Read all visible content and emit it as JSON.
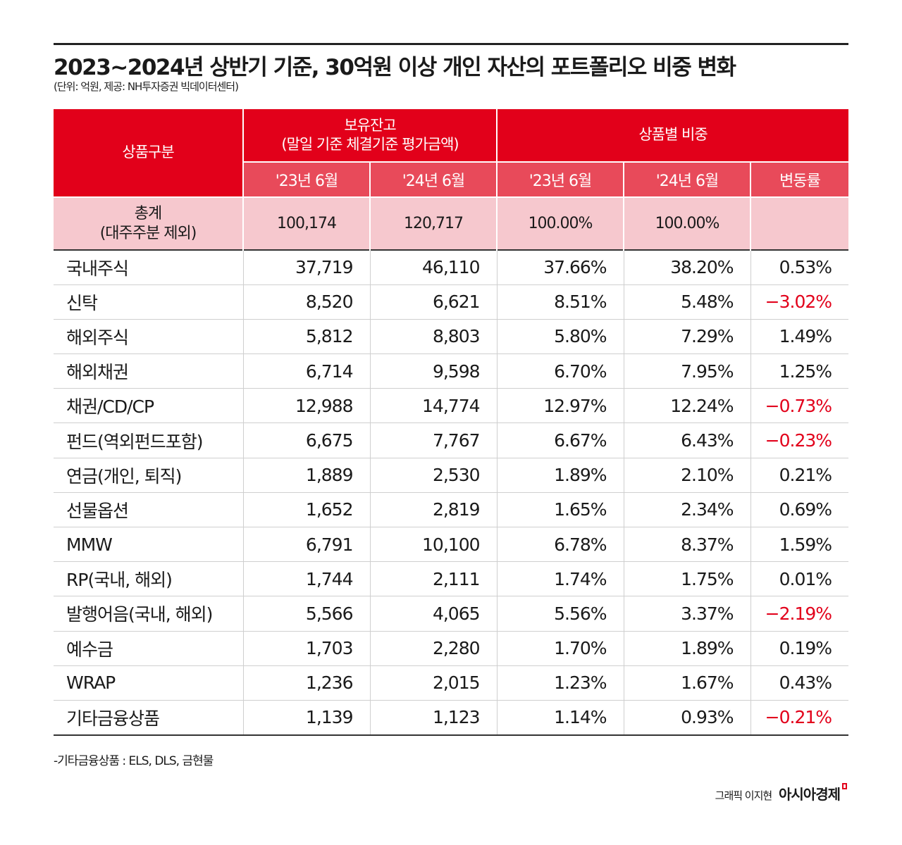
{
  "title": "2023~2024년 상반기 기준, 30억원 이상 개인 자산의 포트폴리오 비중 변화",
  "subtitle": "(단위: 억원, 제공: NH투자증권 빅데이터센터)",
  "chart_data": {
    "type": "table",
    "header": {
      "category": "상품구분",
      "holdings": "보유잔고",
      "holdings_sub": "(말일 기준 체결기준 평가금액)",
      "share": "상품별 비중"
    },
    "columns": [
      "'23년 6월",
      "'24년 6월",
      "'23년 6월",
      "'24년 6월",
      "변동률"
    ],
    "total": {
      "label1": "총계",
      "label2": "(대주주분 제외)",
      "values": [
        "100,174",
        "120,717",
        "100.00%",
        "100.00%",
        ""
      ]
    },
    "rows": [
      {
        "label": "국내주식",
        "values": [
          "37,719",
          "46,110",
          "37.66%",
          "38.20%",
          "0.53%"
        ]
      },
      {
        "label": "신탁",
        "values": [
          "8,520",
          "6,621",
          "8.51%",
          "5.48%",
          "-3.02%"
        ]
      },
      {
        "label": "해외주식",
        "values": [
          "5,812",
          "8,803",
          "5.80%",
          "7.29%",
          "1.49%"
        ]
      },
      {
        "label": "해외채권",
        "values": [
          "6,714",
          "9,598",
          "6.70%",
          "7.95%",
          "1.25%"
        ]
      },
      {
        "label": "채권/CD/CP",
        "values": [
          "12,988",
          "14,774",
          "12.97%",
          "12.24%",
          "-0.73%"
        ]
      },
      {
        "label": "펀드(역외펀드포함)",
        "values": [
          "6,675",
          "7,767",
          "6.67%",
          "6.43%",
          "-0.23%"
        ]
      },
      {
        "label": "연금(개인, 퇴직)",
        "values": [
          "1,889",
          "2,530",
          "1.89%",
          "2.10%",
          "0.21%"
        ]
      },
      {
        "label": "선물옵션",
        "values": [
          "1,652",
          "2,819",
          "1.65%",
          "2.34%",
          "0.69%"
        ]
      },
      {
        "label": "MMW",
        "values": [
          "6,791",
          "10,100",
          "6.78%",
          "8.37%",
          "1.59%"
        ]
      },
      {
        "label": "RP(국내, 해외)",
        "values": [
          "1,744",
          "2,111",
          "1.74%",
          "1.75%",
          "0.01%"
        ]
      },
      {
        "label": "발행어음(국내, 해외)",
        "values": [
          "5,566",
          "4,065",
          "5.56%",
          "3.37%",
          "-2.19%"
        ]
      },
      {
        "label": "예수금",
        "values": [
          "1,703",
          "2,280",
          "1.70%",
          "1.89%",
          "0.19%"
        ]
      },
      {
        "label": "WRAP",
        "values": [
          "1,236",
          "2,015",
          "1.23%",
          "1.67%",
          "0.43%"
        ]
      },
      {
        "label": "기타금융상품",
        "values": [
          "1,139",
          "1,123",
          "1.14%",
          "0.93%",
          "-0.21%"
        ]
      }
    ],
    "colors": {
      "header": "#e2001a",
      "subheader": "#e84a5a",
      "total": "#f6c8ce",
      "negative": "#e2001a"
    }
  },
  "note": "-기타금융상품 : ELS, DLS, 금현물",
  "credit": "그래픽 이지현",
  "brand": "아시아경제"
}
